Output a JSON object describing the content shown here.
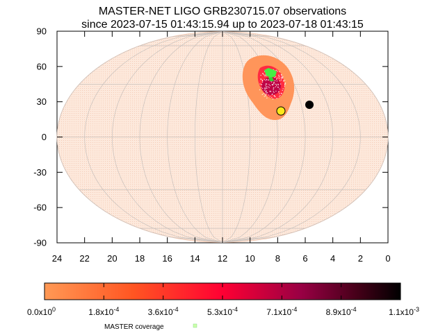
{
  "title_line1": "MASTER-NET LIGO GRB230715.07 observations",
  "title_line2": "since 2023-07-15 01:43:15.94 up to 2023-07-18 01:43:15",
  "chart_data": {
    "type": "sky-map",
    "projection": "mollweide",
    "x_axis": {
      "unit": "RA (hours)",
      "range": [
        24,
        0
      ],
      "ticks": [
        "24",
        "22",
        "20",
        "18",
        "16",
        "14",
        "12",
        "10",
        "8",
        "6",
        "4",
        "2",
        "0"
      ]
    },
    "y_axis": {
      "unit": "Dec (degrees)",
      "range": [
        -90,
        90
      ],
      "ticks": [
        "90",
        "60",
        "30",
        "0",
        "-30",
        "-60",
        "-90"
      ]
    },
    "grid": true,
    "probability_region": {
      "center_ra_h": 8.6,
      "center_dec_deg": 46,
      "peak": "1.1x10^-3"
    },
    "markers": [
      {
        "name": "sun",
        "ra_h": 7.7,
        "dec_deg": 22,
        "color": "#ffe81a"
      },
      {
        "name": "moon",
        "ra_h": 5.8,
        "dec_deg": 27,
        "color": "#000000"
      }
    ],
    "master_coverage": {
      "ra_h": 8.6,
      "dec_deg": 53,
      "color": "#33ee33"
    },
    "colorbar": {
      "ticks": [
        "0.0x10^0",
        "1.8x10^-4",
        "3.6x10^-4",
        "5.3x10^-4",
        "7.1x10^-4",
        "8.9x10^-4",
        "1.1x10^-3"
      ],
      "colors": [
        "#ff9955",
        "#ff5522",
        "#ff0033",
        "#aa0044",
        "#550022",
        "#000000"
      ]
    },
    "legend": [
      {
        "label": "MASTER coverage",
        "color": "#ccffaa"
      }
    ]
  }
}
